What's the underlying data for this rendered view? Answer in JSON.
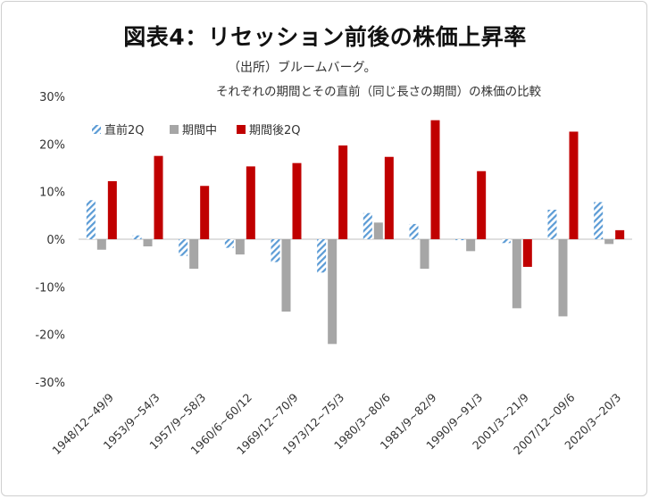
{
  "chart_data": {
    "type": "bar",
    "title": "図表4：リセッション前後の株価上昇率",
    "source": "（出所）ブルームバーグ。",
    "subtitle": "それぞれの期間とその直前（同じ長さの期間）の株価の比較",
    "categories": [
      "1948/12~49/9",
      "1953/9~54/3",
      "1957/9~58/3",
      "1960/6~60/12",
      "1969/12~70/9",
      "1973/12~75/3",
      "1980/3~80/6",
      "1981/9~82/9",
      "1990/9~91/3",
      "2001/3~21/9",
      "2007/12~09/6",
      "2020/3~20/3"
    ],
    "series": [
      {
        "name": "直前2Q",
        "color": "#5b9bd5",
        "pattern": "diagonal-stripes",
        "values": [
          8.2,
          0.8,
          -3.5,
          -1.8,
          -4.8,
          -7.0,
          5.5,
          3.2,
          -0.2,
          -0.8,
          6.2,
          7.8
        ]
      },
      {
        "name": "期間中",
        "color": "#a6a6a6",
        "values": [
          -2.2,
          -1.5,
          -6.2,
          -3.2,
          -15.2,
          -22.0,
          3.5,
          -6.2,
          -2.5,
          -14.5,
          -16.2,
          -1.0
        ]
      },
      {
        "name": "期間後2Q",
        "color": "#c00000",
        "values": [
          12.2,
          17.5,
          11.2,
          15.3,
          16.0,
          19.7,
          17.3,
          25.0,
          14.3,
          -5.8,
          22.6,
          1.9
        ]
      }
    ],
    "ylim": [
      -30,
      30
    ],
    "yticks": [
      -30,
      -20,
      -10,
      0,
      10,
      20,
      30
    ],
    "ytick_labels": [
      "-30%",
      "-20%",
      "-10%",
      "0%",
      "10%",
      "20%",
      "30%"
    ],
    "legend_position": "top-left",
    "grid": false
  }
}
